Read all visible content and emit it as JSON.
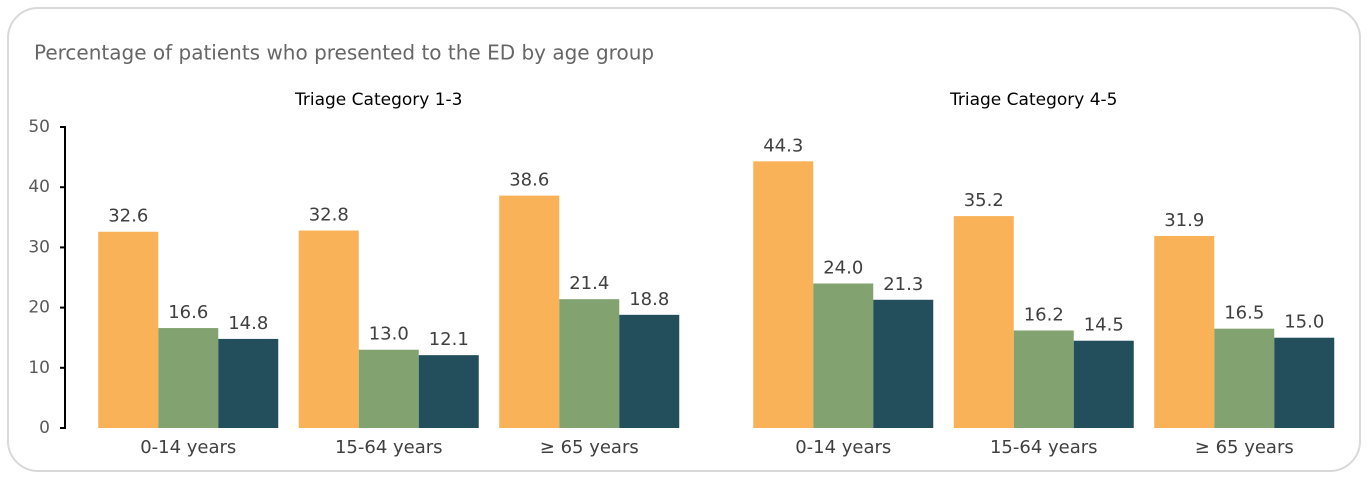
{
  "title": "Percentage of patients who presented to the ED by age group",
  "chart_data": [
    {
      "type": "bar",
      "title": "Triage Category 1-3",
      "categories": [
        "0-14 years",
        "15-64 years",
        "≥ 65 years"
      ],
      "series": [
        {
          "color": "#F9B257",
          "values": [
            32.6,
            32.8,
            38.6
          ],
          "value_labels": [
            "32.6",
            "32.8",
            "38.6"
          ]
        },
        {
          "color": "#82A36F",
          "values": [
            16.6,
            13.0,
            21.4
          ],
          "value_labels": [
            "16.6",
            "13.0",
            "21.4"
          ]
        },
        {
          "color": "#234F5C",
          "values": [
            14.8,
            12.1,
            18.8
          ],
          "value_labels": [
            "14.8",
            "12.1",
            "18.8"
          ]
        }
      ],
      "ylim": [
        0,
        50
      ],
      "yticks": [
        0,
        10,
        20,
        30,
        40,
        50
      ]
    },
    {
      "type": "bar",
      "title": "Triage Category 4-5",
      "categories": [
        "0-14 years",
        "15-64 years",
        "≥ 65 years"
      ],
      "series": [
        {
          "color": "#F9B257",
          "values": [
            44.3,
            35.2,
            31.9
          ],
          "value_labels": [
            "44.3",
            "35.2",
            "31.9"
          ]
        },
        {
          "color": "#82A36F",
          "values": [
            24.0,
            16.2,
            16.5
          ],
          "value_labels": [
            "24.0",
            "16.2",
            "16.5"
          ]
        },
        {
          "color": "#234F5C",
          "values": [
            21.3,
            14.5,
            15.0
          ],
          "value_labels": [
            "21.3",
            "14.5",
            "15.0"
          ]
        }
      ],
      "ylim": [
        0,
        50
      ]
    }
  ]
}
